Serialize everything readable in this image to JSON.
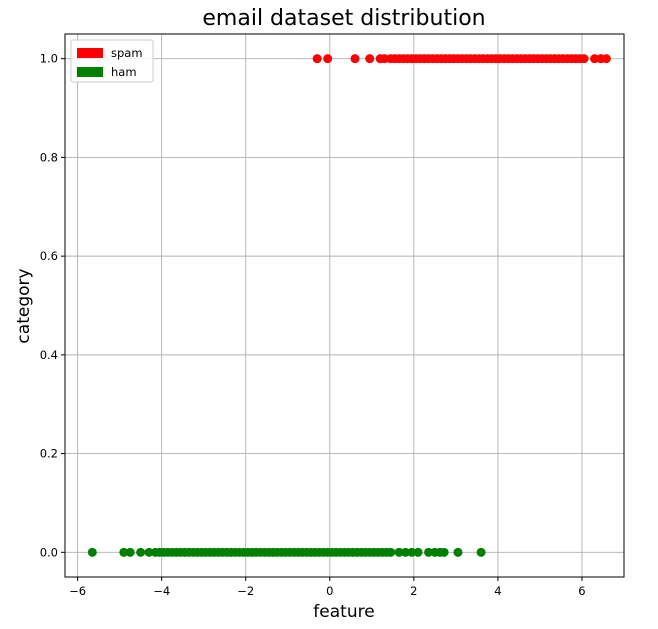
{
  "chart_data": {
    "type": "scatter",
    "title": "email dataset distribution",
    "xlabel": "feature",
    "ylabel": "category",
    "xlim": [
      -6.3,
      7.0
    ],
    "ylim": [
      -0.05,
      1.05
    ],
    "xticks": [
      -6,
      -4,
      -2,
      0,
      2,
      4,
      6
    ],
    "xtick_labels": [
      "−6",
      "−4",
      "−2",
      "0",
      "2",
      "4",
      "6"
    ],
    "yticks": [
      0.0,
      0.2,
      0.4,
      0.6,
      0.8,
      1.0
    ],
    "ytick_labels": [
      "0.0",
      "0.2",
      "0.4",
      "0.6",
      "0.8",
      "1.0"
    ],
    "grid": true,
    "legend_position": "top-left",
    "legend": [
      {
        "label": "spam",
        "color": "#ff0000"
      },
      {
        "label": "ham",
        "color": "#008000"
      }
    ],
    "series": [
      {
        "name": "spam",
        "color": "#ff0000",
        "y": 1,
        "x": [
          -0.3,
          -0.05,
          0.6,
          0.95,
          1.2,
          1.3,
          1.45,
          1.55,
          1.65,
          1.75,
          1.85,
          1.95,
          2.05,
          2.15,
          2.25,
          2.35,
          2.45,
          2.55,
          2.65,
          2.75,
          2.85,
          2.95,
          3.05,
          3.15,
          3.25,
          3.35,
          3.45,
          3.55,
          3.65,
          3.75,
          3.85,
          3.95,
          4.05,
          4.15,
          4.25,
          4.35,
          4.45,
          4.55,
          4.65,
          4.75,
          4.85,
          4.95,
          5.05,
          5.15,
          5.25,
          5.35,
          5.45,
          5.55,
          5.65,
          5.75,
          5.85,
          5.95,
          6.05,
          6.3,
          6.45,
          6.58
        ]
      },
      {
        "name": "ham",
        "color": "#008000",
        "y": 0,
        "x": [
          -5.65,
          -4.9,
          -4.75,
          -4.5,
          -4.3,
          -4.15,
          -4.05,
          -3.95,
          -3.85,
          -3.75,
          -3.65,
          -3.55,
          -3.45,
          -3.35,
          -3.25,
          -3.15,
          -3.05,
          -2.95,
          -2.85,
          -2.75,
          -2.65,
          -2.55,
          -2.45,
          -2.35,
          -2.25,
          -2.15,
          -2.05,
          -1.95,
          -1.85,
          -1.75,
          -1.65,
          -1.55,
          -1.45,
          -1.35,
          -1.25,
          -1.15,
          -1.05,
          -0.95,
          -0.85,
          -0.75,
          -0.65,
          -0.55,
          -0.45,
          -0.35,
          -0.25,
          -0.15,
          -0.05,
          0.05,
          0.15,
          0.25,
          0.35,
          0.45,
          0.55,
          0.65,
          0.75,
          0.85,
          0.95,
          1.05,
          1.15,
          1.25,
          1.35,
          1.45,
          1.65,
          1.8,
          1.95,
          2.1,
          2.35,
          2.5,
          2.62,
          2.72,
          3.05,
          3.6
        ]
      }
    ]
  }
}
